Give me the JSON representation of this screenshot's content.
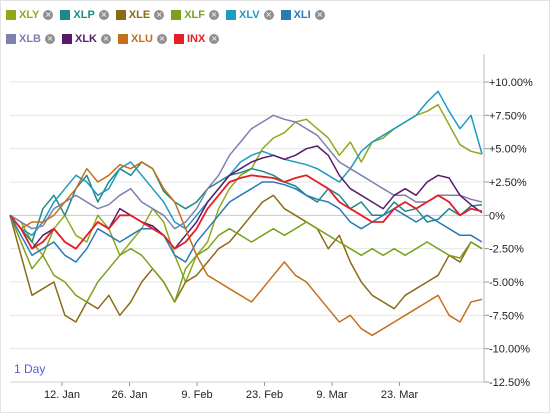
{
  "legend": [
    {
      "name": "XLY",
      "color": "#8fa81c"
    },
    {
      "name": "XLP",
      "color": "#1c8a8a"
    },
    {
      "name": "XLE",
      "color": "#8c6a15"
    },
    {
      "name": "XLF",
      "color": "#7aa11f"
    },
    {
      "name": "XLV",
      "color": "#1f9ac2"
    },
    {
      "name": "XLI",
      "color": "#2a7ab8"
    },
    {
      "name": "XLB",
      "color": "#7f7fb2"
    },
    {
      "name": "XLK",
      "color": "#5a1a6a"
    },
    {
      "name": "XLU",
      "color": "#c66f1a"
    },
    {
      "name": "INX",
      "color": "#e32027"
    }
  ],
  "period_label": "1 Day",
  "chart_data": {
    "type": "line",
    "ylim": [
      -12.5,
      11.5
    ],
    "y_ticks": [
      10,
      7.5,
      5,
      2.5,
      0,
      -2.5,
      -5,
      -7.5,
      -10,
      -12.5
    ],
    "y_tick_labels": [
      "+10.00%",
      "+7.50%",
      "+5.00%",
      "+2.50%",
      "0%",
      "-2.50%",
      "-5.00%",
      "-7.50%",
      "-10.00%",
      "-12.50%"
    ],
    "x_tick_labels": [
      "12. Jan",
      "26. Jan",
      "9. Feb",
      "23. Feb",
      "9. Mar",
      "23. Mar"
    ],
    "grid": true,
    "legend_position": "top-left",
    "series": [
      {
        "name": "XLY",
        "values": [
          0,
          -0.5,
          -2,
          -3,
          -1,
          0,
          -1.5,
          -2,
          0,
          -1,
          -3,
          -2,
          -1,
          0.5,
          -0.5,
          -3,
          -5,
          -3,
          -2,
          0.5,
          2,
          3,
          3.5,
          5,
          5.8,
          6.2,
          7,
          7.2,
          6.5,
          5.8,
          4.5,
          5.5,
          4,
          5.5,
          5.8,
          6.5,
          7,
          7.5,
          7.8,
          8.3,
          6.8,
          5.3,
          4.8,
          4.6
        ]
      },
      {
        "name": "XLP",
        "values": [
          0,
          -1,
          -2,
          0.5,
          1.5,
          0,
          2,
          3,
          1,
          2.5,
          3.5,
          3,
          4,
          3.5,
          1.8,
          1,
          0.5,
          1,
          2,
          2.5,
          3,
          3.2,
          3.5,
          3.3,
          3,
          2.5,
          2.2,
          1.5,
          1,
          2,
          1.5,
          0.5,
          1,
          0,
          0,
          1,
          0.3,
          0.5,
          -0.5,
          -0.3,
          0.5,
          0,
          0.7,
          0.8
        ]
      },
      {
        "name": "XLE",
        "values": [
          0,
          -3,
          -6,
          -5.5,
          -5,
          -7.5,
          -8,
          -6.5,
          -7,
          -6,
          -7.5,
          -6.5,
          -5,
          -4,
          -5,
          -6.5,
          -5,
          -4.5,
          -3.5,
          -2.5,
          -2,
          -1,
          0,
          1,
          1.5,
          0.5,
          0,
          -0.5,
          -1,
          -2.5,
          -1.5,
          -3.5,
          -5,
          -6,
          -6.5,
          -7,
          -6,
          -5.5,
          -5,
          -4.5,
          -3,
          -3.5,
          -2,
          -2.5
        ]
      },
      {
        "name": "XLF",
        "values": [
          0,
          -2,
          -4,
          -3,
          -4.5,
          -5,
          -6,
          -6.5,
          -5,
          -4,
          -3,
          -2.5,
          -3,
          -4,
          -5,
          -6.5,
          -4,
          -3,
          -2.5,
          -1.5,
          -1,
          -1.5,
          -2,
          -1.5,
          -1,
          -1.5,
          -1,
          -0.5,
          -1,
          -1.5,
          -2,
          -2.5,
          -3,
          -2.5,
          -3,
          -2.5,
          -3,
          -2.5,
          -2,
          -2.5,
          -3,
          -3.2,
          -2,
          -2.5
        ]
      },
      {
        "name": "XLV",
        "values": [
          0,
          -1,
          -1.5,
          -0.5,
          1,
          2,
          3,
          2.5,
          1.5,
          2,
          3.5,
          4,
          3,
          2,
          1,
          -0.5,
          -1,
          0,
          1,
          2,
          3,
          4,
          4.5,
          4.8,
          4.5,
          4.2,
          4,
          3.8,
          3.5,
          3,
          2.5,
          3.5,
          4.8,
          5.5,
          6,
          6.5,
          7,
          7.5,
          8.5,
          9.3,
          7.8,
          6.5,
          7.5,
          4.6
        ]
      },
      {
        "name": "XLI",
        "values": [
          0,
          -1.5,
          -3,
          -2.5,
          -2,
          -3,
          -3.5,
          -2.5,
          -1,
          -1.5,
          -2,
          -1.5,
          -1,
          -1,
          -1.5,
          -3,
          -3.5,
          -2,
          -1,
          0,
          1,
          1.5,
          2,
          2.5,
          2.5,
          2.3,
          2,
          1.5,
          1.2,
          1,
          0.5,
          -0.5,
          -1,
          -0.5,
          0,
          0.5,
          0,
          -0.5,
          0,
          -0.5,
          -1,
          -1.5,
          -1.5,
          -2
        ]
      },
      {
        "name": "XLB",
        "values": [
          0,
          -0.5,
          -1,
          -0.8,
          0.5,
          1,
          1.5,
          1,
          0.5,
          0.8,
          1.5,
          2,
          1,
          0.5,
          0,
          -1,
          -0.5,
          0.5,
          2,
          3,
          4.5,
          5.5,
          6.5,
          7,
          7.5,
          7.2,
          7,
          6.5,
          6,
          5,
          4,
          3.5,
          3,
          2.5,
          2,
          1.5,
          1.5,
          1,
          1,
          1.5,
          1.5,
          1.5,
          1.2,
          1
        ]
      },
      {
        "name": "XLK",
        "values": [
          0,
          -1,
          -2.5,
          -1.5,
          -1,
          -2,
          -2.5,
          -1.5,
          -0.5,
          -1,
          0.5,
          0,
          -0.5,
          -0.8,
          -1.5,
          -2.5,
          -1.5,
          -0.5,
          1,
          2,
          3,
          3.5,
          4,
          4.3,
          4.5,
          4.2,
          4.5,
          5,
          5.2,
          4.5,
          3,
          2,
          1.5,
          1,
          0.5,
          1.5,
          2,
          1.5,
          2.5,
          3,
          2.8,
          1.5,
          0.8,
          0.2
        ]
      },
      {
        "name": "XLU",
        "values": [
          0,
          -1,
          -0.5,
          -0.5,
          0,
          1,
          2,
          3.5,
          2.5,
          3,
          3.8,
          3.5,
          4,
          3.5,
          2,
          1,
          -1,
          -3,
          -4.5,
          -5,
          -5.5,
          -6,
          -6.5,
          -5.5,
          -4.5,
          -3.5,
          -4.5,
          -5,
          -6,
          -7,
          -8,
          -7.5,
          -8.5,
          -9,
          -8.5,
          -8,
          -7.5,
          -7,
          -6.5,
          -6,
          -7.5,
          -8,
          -6.5,
          -6.3
        ]
      },
      {
        "name": "INX",
        "values": [
          0,
          -1,
          -2.5,
          -2,
          -1,
          -2,
          -2.5,
          -1.5,
          -0.5,
          -1,
          0,
          0,
          -0.5,
          -1,
          -1.5,
          -2.5,
          -2,
          -1,
          0.5,
          1.5,
          2.5,
          2.8,
          3,
          2.9,
          2.8,
          2.5,
          2.8,
          3,
          2.5,
          2,
          1,
          0.5,
          0,
          -0.5,
          -0.5,
          0.5,
          1,
          0.5,
          1,
          1.5,
          1,
          0,
          0.5,
          0.3
        ]
      }
    ]
  }
}
